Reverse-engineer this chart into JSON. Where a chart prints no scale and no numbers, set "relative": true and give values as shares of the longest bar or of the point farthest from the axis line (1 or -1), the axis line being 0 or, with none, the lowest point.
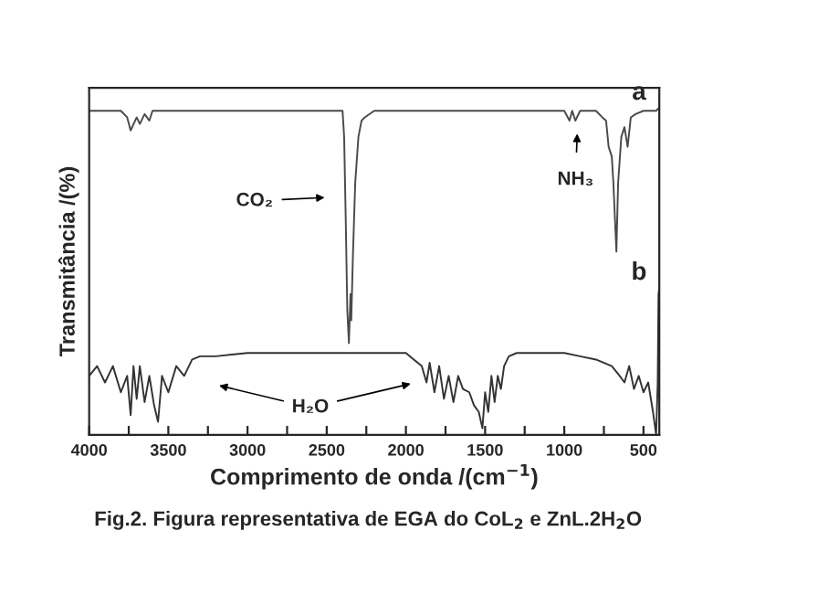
{
  "chart_data": {
    "type": "line",
    "relative": true,
    "title": "Fig.2. Figura representativa de EGA do CoL$_{2}$ e ZnL.2H$_{2}$O",
    "xlabel": "Comprimento de onda /(cm$^{−1}$)",
    "ylabel": "Transmitância /(%)",
    "xlim": [
      4000,
      400
    ],
    "xticks": [
      4000,
      {
        "value": 3750,
        "label": null
      },
      3500,
      {
        "value": 3250,
        "label": null
      },
      3000,
      {
        "value": 2750,
        "label": null
      },
      2500,
      {
        "value": 2250,
        "label": null
      },
      2000,
      {
        "value": 1750,
        "label": null
      },
      1500,
      {
        "value": 1250,
        "label": null
      },
      1000,
      {
        "value": 750,
        "label": null
      },
      500
    ],
    "tick_labels": "x",
    "grid": false,
    "marker": "none",
    "line_style": "solid",
    "annotations": [
      "CO₂",
      "NH₃",
      "H₂O"
    ],
    "series": [
      {
        "name": "a",
        "color": "#4a4a4a",
        "x": [
          4000,
          3800,
          3760,
          3738,
          3700,
          3680,
          3650,
          3620,
          3600,
          3500,
          3000,
          2500,
          2400,
          2390,
          2380,
          2370,
          2360,
          2350,
          2345,
          2335,
          2320,
          2300,
          2280,
          2260,
          2200,
          1800,
          1500,
          1300,
          1000,
          967,
          950,
          930,
          900,
          800,
          760,
          736,
          720,
          700,
          690,
          671,
          660,
          640,
          620,
          600,
          580,
          550,
          500,
          420,
          400
        ],
        "values": [
          0.99,
          0.99,
          0.97,
          0.93,
          0.97,
          0.95,
          0.98,
          0.96,
          0.99,
          0.99,
          0.99,
          0.99,
          0.99,
          0.91,
          0.66,
          0.38,
          0.28,
          0.43,
          0.35,
          0.54,
          0.77,
          0.91,
          0.96,
          0.97,
          0.99,
          0.99,
          0.99,
          0.99,
          0.99,
          0.96,
          0.99,
          0.96,
          0.99,
          0.99,
          0.97,
          0.96,
          0.88,
          0.85,
          0.77,
          0.56,
          0.77,
          0.91,
          0.94,
          0.88,
          0.97,
          0.98,
          0.99,
          0.99,
          1.0
        ]
      },
      {
        "name": "b",
        "color": "#333333",
        "x": [
          4000,
          3950,
          3900,
          3850,
          3800,
          3760,
          3738,
          3720,
          3700,
          3680,
          3650,
          3620,
          3590,
          3565,
          3540,
          3500,
          3450,
          3400,
          3350,
          3300,
          3200,
          3000,
          2500,
          2000,
          1950,
          1900,
          1870,
          1850,
          1820,
          1790,
          1760,
          1730,
          1700,
          1670,
          1640,
          1600,
          1570,
          1540,
          1517,
          1500,
          1480,
          1460,
          1440,
          1420,
          1400,
          1380,
          1350,
          1300,
          1000,
          900,
          800,
          700,
          650,
          620,
          590,
          560,
          530,
          500,
          470,
          440,
          420,
          410,
          405,
          400
        ],
        "values": [
          0.18,
          0.21,
          0.16,
          0.21,
          0.13,
          0.18,
          0.06,
          0.21,
          0.11,
          0.21,
          0.1,
          0.18,
          0.09,
          0.04,
          0.18,
          0.13,
          0.21,
          0.18,
          0.23,
          0.24,
          0.24,
          0.25,
          0.25,
          0.25,
          0.23,
          0.21,
          0.16,
          0.22,
          0.13,
          0.21,
          0.11,
          0.18,
          0.1,
          0.18,
          0.14,
          0.13,
          0.09,
          0.07,
          0.02,
          0.13,
          0.07,
          0.18,
          0.1,
          0.18,
          0.14,
          0.21,
          0.24,
          0.25,
          0.25,
          0.24,
          0.23,
          0.21,
          0.18,
          0.16,
          0.21,
          0.14,
          0.18,
          0.13,
          0.16,
          0.07,
          0.0,
          0.16,
          0.43,
          0.45
        ]
      }
    ]
  }
}
